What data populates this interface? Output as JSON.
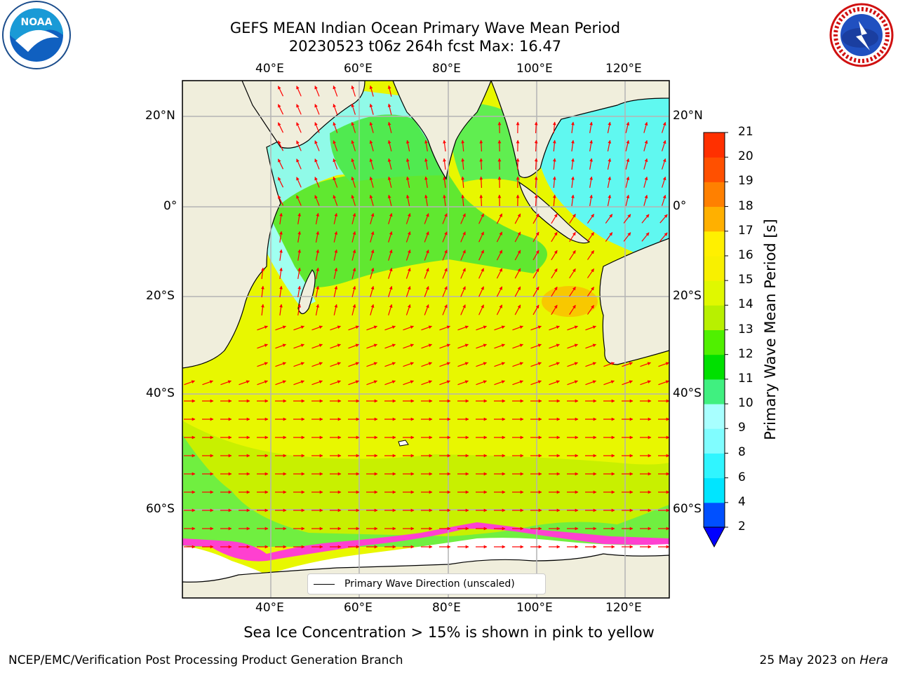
{
  "title_line1": "GEFS MEAN Indian Ocean Primary Wave Mean Period",
  "title_line2": "20230523 t06z 264h fcst   Max: 16.47",
  "logos": {
    "left": "NOAA",
    "right": "National Weather Service"
  },
  "lon_labels": [
    "40°E",
    "60°E",
    "80°E",
    "100°E",
    "120°E"
  ],
  "lat_labels": [
    "20°N",
    "0°",
    "20°S",
    "40°S",
    "60°S"
  ],
  "colorbar": {
    "title": "Primary Wave Mean Period [s]",
    "ticks": [
      "2",
      "4",
      "6",
      "8",
      "9",
      "10",
      "11",
      "12",
      "13",
      "14",
      "15",
      "16",
      "17",
      "18",
      "19",
      "20",
      "21"
    ],
    "colors": [
      "#0050ff",
      "#00e5ff",
      "#30f5ff",
      "#80fdff",
      "#a8ffff",
      "#40f080",
      "#00e000",
      "#50f000",
      "#b8f000",
      "#e0f800",
      "#f8f000",
      "#fff000",
      "#ffb000",
      "#ff8000",
      "#ff5000",
      "#ff3000",
      "#ff0000"
    ]
  },
  "legend": {
    "label": "Primary Wave Direction (unscaled)"
  },
  "note": "Sea Ice Concentration > 15% is shown in pink to yellow",
  "credit": "NCEP/EMC/Verification Post Processing Product Generation Branch",
  "date_text": "25 May 2023 on ",
  "date_host": "Hera"
}
